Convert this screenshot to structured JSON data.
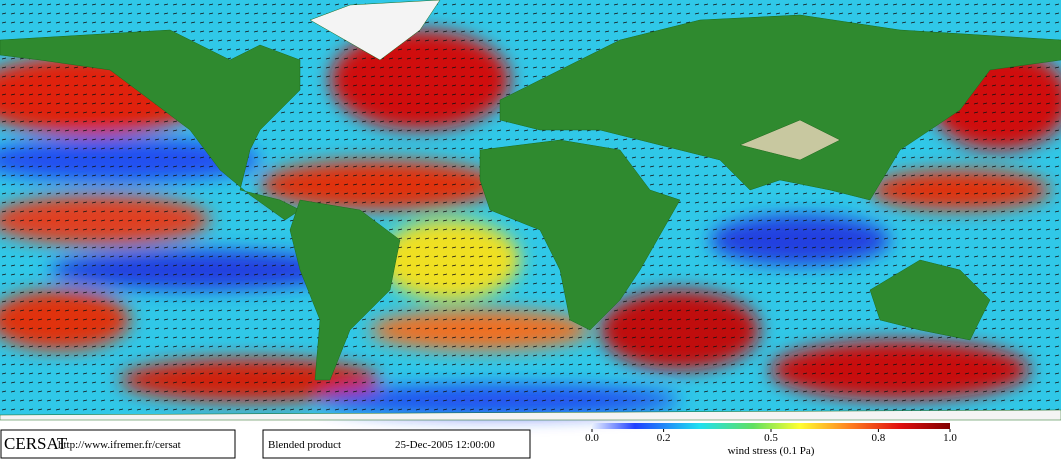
{
  "footer": {
    "logo": "CERSAT",
    "url": "http://www.ifremer.fr/cersat",
    "product": "Blended product",
    "date": "25-Dec-2005 12:00:00"
  },
  "colorbar": {
    "label": "wind stress (0.1 Pa)",
    "lim": [
      0,
      1
    ],
    "ticks": [
      {
        "value": 0,
        "label": "0.0"
      },
      0.2,
      0.5,
      0.8,
      {
        "value": 1,
        "label": "1.0"
      }
    ]
  }
}
